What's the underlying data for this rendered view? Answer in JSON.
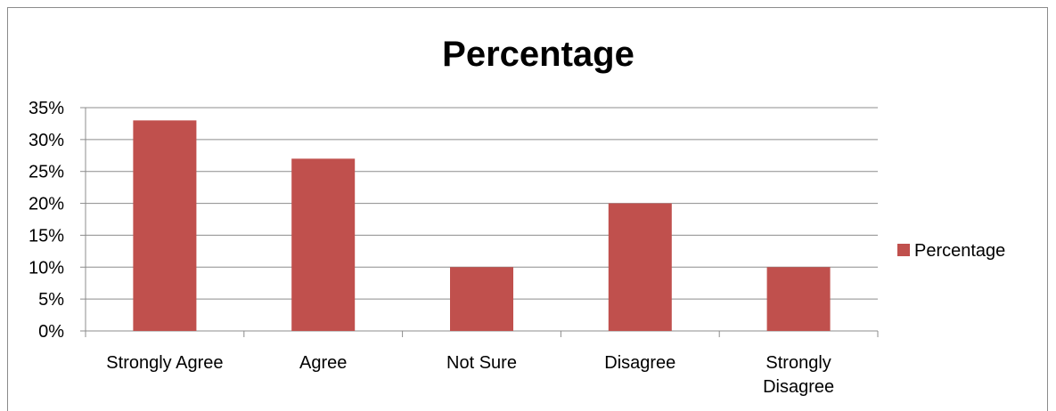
{
  "chart_data": {
    "type": "bar",
    "title": "Percentage",
    "categories": [
      "Strongly Agree",
      "Agree",
      "Not Sure",
      "Disagree",
      "Strongly Disagree"
    ],
    "category_lines": [
      [
        "Strongly Agree"
      ],
      [
        "Agree"
      ],
      [
        "Not Sure"
      ],
      [
        "Disagree"
      ],
      [
        "Strongly",
        "Disagree"
      ]
    ],
    "series": [
      {
        "name": "Percentage",
        "values": [
          33,
          27,
          10,
          20,
          10
        ],
        "color": "#c0504d"
      }
    ],
    "ylim": [
      0,
      35
    ],
    "y_ticks": [
      0,
      5,
      10,
      15,
      20,
      25,
      30,
      35
    ],
    "y_tick_labels": [
      "0%",
      "5%",
      "10%",
      "15%",
      "20%",
      "25%",
      "30%",
      "35%"
    ],
    "grid": true,
    "grid_color": "#8c8c8c",
    "legend": "right"
  }
}
